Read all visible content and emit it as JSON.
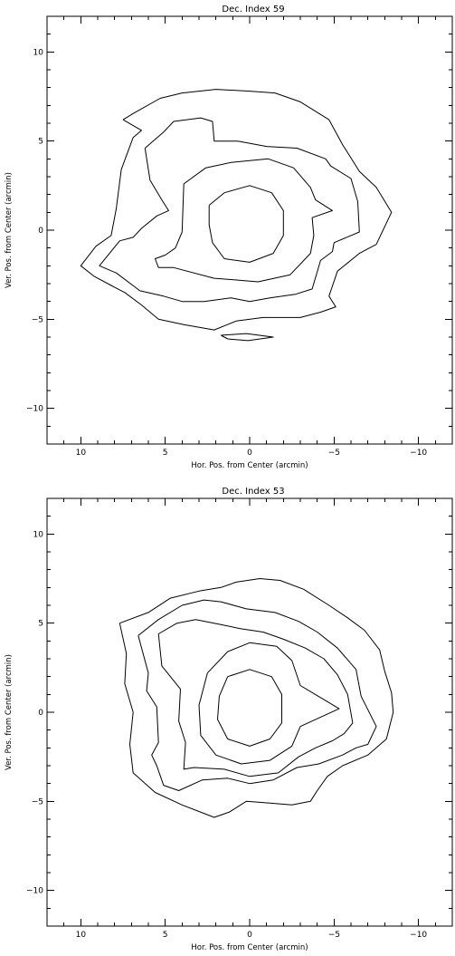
{
  "chart_data": [
    {
      "type": "contour",
      "title": "Dec. Index  59",
      "xlabel": "Hor. Pos. from Center (arcmin)",
      "ylabel": "Ver. Pos. from Center (arcmin)",
      "xlim": [
        12,
        -12
      ],
      "ylim": [
        -12,
        12
      ],
      "x_ticks": [
        10,
        5,
        0,
        -5,
        -10
      ],
      "x_tick_labels": [
        "10",
        "5",
        "0",
        "−5",
        "−10"
      ],
      "y_ticks": [
        10,
        5,
        0,
        -5,
        -10
      ],
      "y_tick_labels": [
        "10",
        "5",
        "0",
        "−5",
        "−10"
      ],
      "contours": [
        {
          "level": 1,
          "points": [
            [
              7.5,
              6.2
            ],
            [
              6.8,
              6.6
            ],
            [
              5.3,
              7.4
            ],
            [
              4,
              7.7
            ],
            [
              2,
              7.9
            ],
            [
              0,
              7.8
            ],
            [
              -1.5,
              7.7
            ],
            [
              -3,
              7.2
            ],
            [
              -4.7,
              6.2
            ],
            [
              -5.5,
              4.8
            ],
            [
              -6.5,
              3.3
            ],
            [
              -7.5,
              2.4
            ],
            [
              -8.4,
              1.0
            ],
            [
              -7.5,
              -0.8
            ],
            [
              -6.5,
              -1.3
            ],
            [
              -5.2,
              -2.3
            ],
            [
              -4.7,
              -3.7
            ],
            [
              -5.1,
              -4.3
            ],
            [
              -4.2,
              -4.6
            ],
            [
              -3.0,
              -4.9
            ],
            [
              -0.8,
              -4.9
            ],
            [
              0.8,
              -5.1
            ],
            [
              2.1,
              -5.6
            ],
            [
              3.9,
              -5.3
            ],
            [
              5.4,
              -5.0
            ],
            [
              6.4,
              -4.2
            ],
            [
              7.4,
              -3.5
            ],
            [
              8.2,
              -3.1
            ],
            [
              9.2,
              -2.6
            ],
            [
              10.0,
              -2.0
            ],
            [
              9.1,
              -0.9
            ],
            [
              8.2,
              -0.3
            ],
            [
              7.9,
              1.2
            ],
            [
              7.6,
              3.4
            ],
            [
              6.9,
              5.2
            ],
            [
              6.4,
              5.6
            ],
            [
              7.5,
              6.2
            ]
          ]
        },
        {
          "level": 2,
          "points": [
            [
              6.2,
              4.6
            ],
            [
              5.1,
              5.5
            ],
            [
              4.5,
              6.1
            ],
            [
              2.9,
              6.3
            ],
            [
              2.2,
              6.1
            ],
            [
              2.1,
              5.0
            ],
            [
              0.7,
              5.0
            ],
            [
              -1.0,
              4.7
            ],
            [
              -2.8,
              4.6
            ],
            [
              -4.5,
              4.0
            ],
            [
              -4.8,
              3.6
            ],
            [
              -6.0,
              2.9
            ],
            [
              -6.4,
              1.6
            ],
            [
              -6.5,
              -0.1
            ],
            [
              -5.0,
              -0.7
            ],
            [
              -4.9,
              -1.2
            ],
            [
              -4.2,
              -1.7
            ],
            [
              -3.7,
              -3.3
            ],
            [
              -2.7,
              -3.6
            ],
            [
              -1.2,
              -3.8
            ],
            [
              0,
              -4.0
            ],
            [
              1.1,
              -3.8
            ],
            [
              2.7,
              -4.0
            ],
            [
              4.0,
              -4.0
            ],
            [
              5.1,
              -3.7
            ],
            [
              6.5,
              -3.4
            ],
            [
              7.9,
              -2.4
            ],
            [
              8.9,
              -2.0
            ],
            [
              7.7,
              -0.6
            ],
            [
              6.9,
              -0.4
            ],
            [
              6.4,
              0.1
            ],
            [
              5.5,
              0.8
            ],
            [
              4.8,
              1.1
            ],
            [
              5.2,
              1.7
            ],
            [
              5.9,
              2.8
            ],
            [
              6.2,
              4.6
            ]
          ]
        },
        {
          "level": 3,
          "points": [
            [
              3.9,
              2.6
            ],
            [
              2.6,
              3.5
            ],
            [
              1.1,
              3.8
            ],
            [
              -1.1,
              4.0
            ],
            [
              -2.6,
              3.5
            ],
            [
              -3.6,
              2.4
            ],
            [
              -3.9,
              1.7
            ],
            [
              -4.9,
              1.1
            ],
            [
              -3.7,
              0.7
            ],
            [
              -3.8,
              -0.3
            ],
            [
              -3.6,
              -1.3
            ],
            [
              -2.4,
              -2.5
            ],
            [
              -0.5,
              -2.9
            ],
            [
              0.7,
              -2.8
            ],
            [
              2.1,
              -2.7
            ],
            [
              4.5,
              -2.1
            ],
            [
              5.4,
              -2.1
            ],
            [
              5.6,
              -1.6
            ],
            [
              5.0,
              -1.4
            ],
            [
              4.4,
              -1.0
            ],
            [
              4.0,
              -0.1
            ],
            [
              3.9,
              2.6
            ]
          ]
        },
        {
          "level": 4,
          "points": [
            [
              2.4,
              1.4
            ],
            [
              1.5,
              2.1
            ],
            [
              0,
              2.5
            ],
            [
              -1.3,
              2.1
            ],
            [
              -2.0,
              1.1
            ],
            [
              -2.0,
              -0.3
            ],
            [
              -1.4,
              -1.3
            ],
            [
              0,
              -1.8
            ],
            [
              1.5,
              -1.6
            ],
            [
              2.2,
              -0.7
            ],
            [
              2.4,
              0.3
            ],
            [
              2.4,
              1.4
            ]
          ]
        },
        {
          "level": 5,
          "points": [
            [
              1.7,
              -5.9
            ],
            [
              0.2,
              -5.8
            ],
            [
              -1.4,
              -6.0
            ],
            [
              0.1,
              -6.2
            ],
            [
              1.3,
              -6.1
            ],
            [
              1.7,
              -5.9
            ]
          ]
        }
      ]
    },
    {
      "type": "contour",
      "title": "Dec. Index  53",
      "xlabel": "Hor. Pos. from Center (arcmin)",
      "ylabel": "Ver. Pos. from Center (arcmin)",
      "xlim": [
        12,
        -12
      ],
      "ylim": [
        -12,
        12
      ],
      "x_ticks": [
        10,
        5,
        0,
        -5,
        -10
      ],
      "x_tick_labels": [
        "10",
        "5",
        "0",
        "−5",
        "−10"
      ],
      "y_ticks": [
        10,
        5,
        0,
        -5,
        -10
      ],
      "y_tick_labels": [
        "10",
        "5",
        "0",
        "−5",
        "−10"
      ],
      "contours": [
        {
          "level": 1,
          "points": [
            [
              7.7,
              5.0
            ],
            [
              6.0,
              5.6
            ],
            [
              4.7,
              6.4
            ],
            [
              3.0,
              6.8
            ],
            [
              1.7,
              7.0
            ],
            [
              0.8,
              7.3
            ],
            [
              -0.6,
              7.5
            ],
            [
              -1.8,
              7.4
            ],
            [
              -3.2,
              6.9
            ],
            [
              -4.7,
              6.0
            ],
            [
              -5.8,
              5.3
            ],
            [
              -6.8,
              4.6
            ],
            [
              -7.7,
              3.5
            ],
            [
              -8.0,
              2.3
            ],
            [
              -8.4,
              1.1
            ],
            [
              -8.5,
              0.0
            ],
            [
              -8.1,
              -1.5
            ],
            [
              -7.0,
              -2.4
            ],
            [
              -5.5,
              -3.0
            ],
            [
              -4.6,
              -3.6
            ],
            [
              -4.0,
              -4.4
            ],
            [
              -3.6,
              -5.0
            ],
            [
              -2.5,
              -5.2
            ],
            [
              -1.2,
              -5.1
            ],
            [
              0.2,
              -5.0
            ],
            [
              1.2,
              -5.6
            ],
            [
              2.1,
              -5.9
            ],
            [
              4.0,
              -5.2
            ],
            [
              5.6,
              -4.5
            ],
            [
              6.9,
              -3.4
            ],
            [
              7.1,
              -1.8
            ],
            [
              6.9,
              0.0
            ],
            [
              7.4,
              1.6
            ],
            [
              7.3,
              3.3
            ],
            [
              7.7,
              5.0
            ]
          ]
        },
        {
          "level": 2,
          "points": [
            [
              6.6,
              4.3
            ],
            [
              5.4,
              5.2
            ],
            [
              4.0,
              6.0
            ],
            [
              2.7,
              6.3
            ],
            [
              1.7,
              6.2
            ],
            [
              0.2,
              5.8
            ],
            [
              -1.5,
              5.6
            ],
            [
              -2.9,
              5.1
            ],
            [
              -4.0,
              4.5
            ],
            [
              -5.2,
              3.6
            ],
            [
              -6.3,
              2.4
            ],
            [
              -6.6,
              0.9
            ],
            [
              -7.5,
              -0.8
            ],
            [
              -7.0,
              -1.8
            ],
            [
              -6.3,
              -2.0
            ],
            [
              -5.5,
              -2.4
            ],
            [
              -4.1,
              -2.9
            ],
            [
              -2.8,
              -3.1
            ],
            [
              -1.4,
              -3.8
            ],
            [
              0,
              -4.0
            ],
            [
              1.3,
              -3.7
            ],
            [
              2.8,
              -3.8
            ],
            [
              4.2,
              -4.4
            ],
            [
              5.1,
              -4.1
            ],
            [
              5.5,
              -3.0
            ],
            [
              5.8,
              -2.4
            ],
            [
              5.4,
              -1.7
            ],
            [
              5.5,
              0.3
            ],
            [
              6.1,
              1.2
            ],
            [
              6.0,
              2.2
            ],
            [
              6.6,
              4.3
            ]
          ]
        },
        {
          "level": 3,
          "points": [
            [
              5.4,
              4.4
            ],
            [
              4.3,
              5.0
            ],
            [
              3.2,
              5.2
            ],
            [
              1.6,
              4.9
            ],
            [
              0.6,
              4.7
            ],
            [
              -0.8,
              4.5
            ],
            [
              -2.0,
              4.1
            ],
            [
              -3.3,
              3.6
            ],
            [
              -4.4,
              3.0
            ],
            [
              -5.2,
              2.1
            ],
            [
              -5.8,
              1.0
            ],
            [
              -6.1,
              -0.6
            ],
            [
              -5.6,
              -1.2
            ],
            [
              -4.9,
              -1.6
            ],
            [
              -3.9,
              -2.0
            ],
            [
              -2.9,
              -2.5
            ],
            [
              -1.7,
              -3.4
            ],
            [
              0,
              -3.6
            ],
            [
              1.5,
              -3.2
            ],
            [
              3.3,
              -3.1
            ],
            [
              3.9,
              -3.2
            ],
            [
              3.8,
              -1.7
            ],
            [
              4.2,
              -0.5
            ],
            [
              4.1,
              1.3
            ],
            [
              5.2,
              2.6
            ],
            [
              5.4,
              4.4
            ]
          ]
        },
        {
          "level": 4,
          "points": [
            [
              2.5,
              2.2
            ],
            [
              1.3,
              3.4
            ],
            [
              0,
              3.9
            ],
            [
              -1.6,
              3.7
            ],
            [
              -2.5,
              2.9
            ],
            [
              -3.0,
              1.5
            ],
            [
              -5.3,
              0.2
            ],
            [
              -3.0,
              -0.8
            ],
            [
              -2.5,
              -1.9
            ],
            [
              -1.2,
              -2.7
            ],
            [
              0.5,
              -2.9
            ],
            [
              2.0,
              -2.4
            ],
            [
              2.9,
              -1.3
            ],
            [
              3.0,
              0.4
            ],
            [
              2.5,
              2.2
            ]
          ]
        },
        {
          "level": 5,
          "points": [
            [
              1.3,
              2.0
            ],
            [
              0,
              2.4
            ],
            [
              -1.3,
              2.0
            ],
            [
              -1.9,
              1.0
            ],
            [
              -1.9,
              -0.6
            ],
            [
              -1.2,
              -1.5
            ],
            [
              0,
              -1.9
            ],
            [
              1.3,
              -1.5
            ],
            [
              1.9,
              -0.4
            ],
            [
              1.8,
              0.9
            ],
            [
              1.3,
              2.0
            ]
          ]
        }
      ]
    }
  ]
}
